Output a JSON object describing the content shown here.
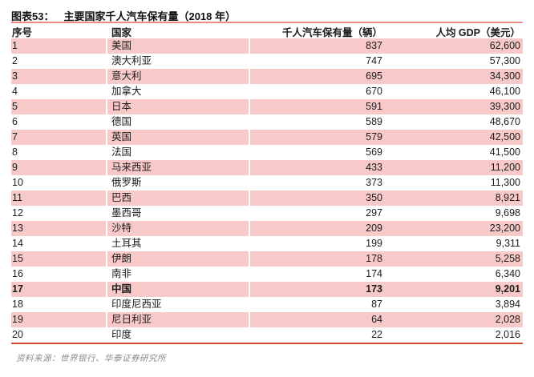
{
  "figure": {
    "label": "图表53：",
    "title": "主要国家千人汽车保有量（2018 年）"
  },
  "table": {
    "columns": [
      "序号",
      "国家",
      "千人汽车保有量（辆）",
      "人均 GDP（美元）"
    ],
    "rows": [
      {
        "rank": "1",
        "country": "美国",
        "cars_per_1000": "837",
        "gdp_per_capita": "62,600",
        "bold": false
      },
      {
        "rank": "2",
        "country": "澳大利亚",
        "cars_per_1000": "747",
        "gdp_per_capita": "57,300",
        "bold": false
      },
      {
        "rank": "3",
        "country": "意大利",
        "cars_per_1000": "695",
        "gdp_per_capita": "34,300",
        "bold": false
      },
      {
        "rank": "4",
        "country": "加拿大",
        "cars_per_1000": "670",
        "gdp_per_capita": "46,100",
        "bold": false
      },
      {
        "rank": "5",
        "country": "日本",
        "cars_per_1000": "591",
        "gdp_per_capita": "39,300",
        "bold": false
      },
      {
        "rank": "6",
        "country": "德国",
        "cars_per_1000": "589",
        "gdp_per_capita": "48,670",
        "bold": false
      },
      {
        "rank": "7",
        "country": "英国",
        "cars_per_1000": "579",
        "gdp_per_capita": "42,500",
        "bold": false
      },
      {
        "rank": "8",
        "country": "法国",
        "cars_per_1000": "569",
        "gdp_per_capita": "41,500",
        "bold": false
      },
      {
        "rank": "9",
        "country": "马来西亚",
        "cars_per_1000": "433",
        "gdp_per_capita": "11,200",
        "bold": false
      },
      {
        "rank": "10",
        "country": "俄罗斯",
        "cars_per_1000": "373",
        "gdp_per_capita": "11,300",
        "bold": false
      },
      {
        "rank": "11",
        "country": "巴西",
        "cars_per_1000": "350",
        "gdp_per_capita": "8,921",
        "bold": false
      },
      {
        "rank": "12",
        "country": "墨西哥",
        "cars_per_1000": "297",
        "gdp_per_capita": "9,698",
        "bold": false
      },
      {
        "rank": "13",
        "country": "沙特",
        "cars_per_1000": "209",
        "gdp_per_capita": "23,200",
        "bold": false
      },
      {
        "rank": "14",
        "country": "土耳其",
        "cars_per_1000": "199",
        "gdp_per_capita": "9,311",
        "bold": false
      },
      {
        "rank": "15",
        "country": "伊朗",
        "cars_per_1000": "178",
        "gdp_per_capita": "5,258",
        "bold": false
      },
      {
        "rank": "16",
        "country": "南非",
        "cars_per_1000": "174",
        "gdp_per_capita": "6,340",
        "bold": false
      },
      {
        "rank": "17",
        "country": "中国",
        "cars_per_1000": "173",
        "gdp_per_capita": "9,201",
        "bold": true
      },
      {
        "rank": "18",
        "country": "印度尼西亚",
        "cars_per_1000": "87",
        "gdp_per_capita": "3,894",
        "bold": false
      },
      {
        "rank": "19",
        "country": "尼日利亚",
        "cars_per_1000": "64",
        "gdp_per_capita": "2,028",
        "bold": false
      },
      {
        "rank": "20",
        "country": "印度",
        "cars_per_1000": "22",
        "gdp_per_capita": "2,016",
        "bold": false
      }
    ]
  },
  "footer": {
    "source": "资料来源：世界银行、华泰证券研究所"
  },
  "colors": {
    "row_pink": "#f8c9c9",
    "rule_top_red": "#ec8b85",
    "rule_bottom_red": "#d44a2e",
    "footer_gray": "#8f8a84"
  },
  "chart_data": {
    "type": "table",
    "title": "主要国家千人汽车保有量（2018 年）",
    "columns": [
      "序号",
      "国家",
      "千人汽车保有量（辆）",
      "人均 GDP（美元）"
    ],
    "categories": [
      "美国",
      "澳大利亚",
      "意大利",
      "加拿大",
      "日本",
      "德国",
      "英国",
      "法国",
      "马来西亚",
      "俄罗斯",
      "巴西",
      "墨西哥",
      "沙特",
      "土耳其",
      "伊朗",
      "南非",
      "中国",
      "印度尼西亚",
      "尼日利亚",
      "印度"
    ],
    "series": [
      {
        "name": "千人汽车保有量（辆）",
        "values": [
          837,
          747,
          695,
          670,
          591,
          589,
          579,
          569,
          433,
          373,
          350,
          297,
          209,
          199,
          178,
          174,
          173,
          87,
          64,
          22
        ]
      },
      {
        "name": "人均 GDP（美元）",
        "values": [
          62600,
          57300,
          34300,
          46100,
          39300,
          48670,
          42500,
          41500,
          11200,
          11300,
          8921,
          9698,
          23200,
          9311,
          5258,
          6340,
          9201,
          3894,
          2028,
          2016
        ]
      }
    ]
  }
}
